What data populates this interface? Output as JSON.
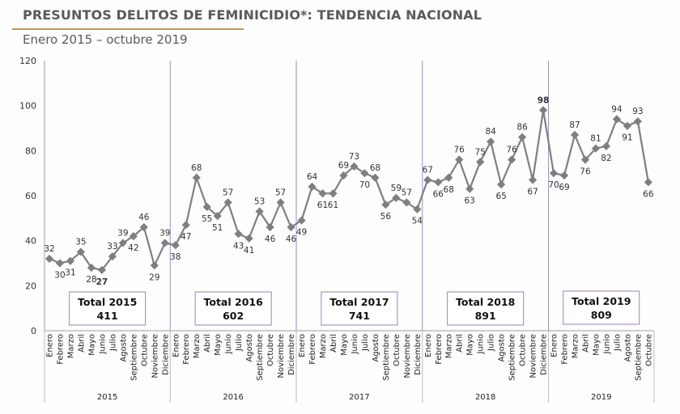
{
  "header": {
    "title": "PRESUNTOS DELITOS DE FEMINICIDIO*: TENDENCIA NACIONAL",
    "subtitle": "Enero 2015 – octubre 2019"
  },
  "colors": {
    "line": "#7f7f7f",
    "divider": "#a08cc0",
    "box_border": "#9b82b8",
    "title_rule": "#b9985b",
    "min_label": "#1fa05a",
    "max_label": "#e02020"
  },
  "chart_data": {
    "type": "line",
    "title": "PRESUNTOS DELITOS DE FEMINICIDIO*: TENDENCIA NACIONAL",
    "subtitle": "Enero 2015 – octubre 2019",
    "xlabel": "",
    "ylabel": "",
    "ylim": [
      0,
      120
    ],
    "yticks": [
      0,
      20,
      40,
      60,
      80,
      100,
      120
    ],
    "grid": false,
    "legend": "none",
    "months": [
      "Enero",
      "Febrero",
      "Marzo",
      "Abril",
      "Mayo",
      "Junio",
      "Julio",
      "Agosto",
      "Septiembre",
      "Octubre",
      "Noviembre",
      "Diciembre"
    ],
    "years": [
      {
        "year": "2015",
        "total_label": "Total 2015",
        "total": "411",
        "values": [
          32,
          30,
          31,
          35,
          28,
          27,
          33,
          39,
          42,
          46,
          29,
          39
        ]
      },
      {
        "year": "2016",
        "total_label": "Total 2016",
        "total": "602",
        "values": [
          38,
          47,
          68,
          55,
          51,
          57,
          43,
          41,
          53,
          46,
          57,
          46
        ]
      },
      {
        "year": "2017",
        "total_label": "Total 2017",
        "total": "741",
        "values": [
          49,
          64,
          61,
          61,
          69,
          73,
          70,
          68,
          56,
          59,
          57,
          54
        ]
      },
      {
        "year": "2018",
        "total_label": "Total 2018",
        "total": "891",
        "values": [
          67,
          66,
          68,
          76,
          63,
          75,
          84,
          65,
          76,
          86,
          67,
          98
        ]
      },
      {
        "year": "2019",
        "total_label": "Total 2019",
        "total": "809",
        "values": [
          70,
          69,
          87,
          76,
          81,
          82,
          94,
          91,
          93,
          66
        ]
      }
    ],
    "annotations": [
      {
        "text": "27",
        "meaning": "minimum",
        "point": "2015-Junio"
      },
      {
        "text": "98",
        "meaning": "maximum",
        "point": "2018-Diciembre"
      }
    ]
  }
}
